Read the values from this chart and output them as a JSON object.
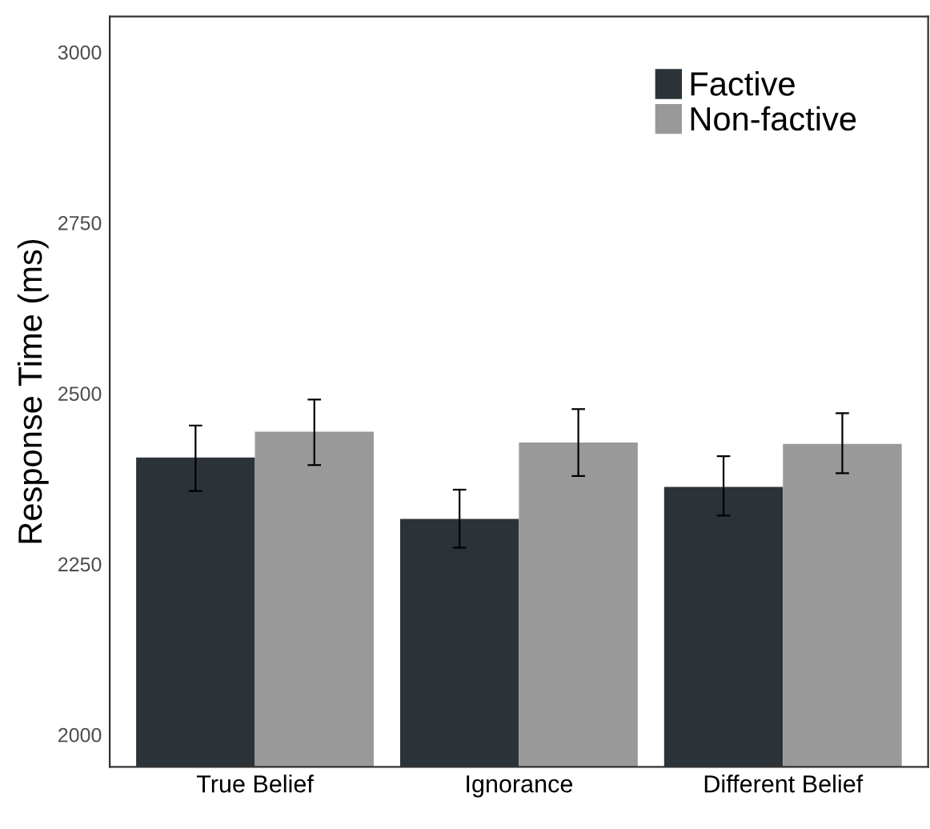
{
  "chart_data": {
    "type": "bar",
    "ylabel": "Response Time (ms)",
    "categories": [
      "True Belief",
      "Ignorance",
      "Different Belief"
    ],
    "series": [
      {
        "name": "Factive",
        "color": "#2c3338",
        "values": [
          2406,
          2316,
          2363
        ],
        "errors": [
          [
            2357,
            2453
          ],
          [
            2274,
            2359
          ],
          [
            2321,
            2408
          ]
        ]
      },
      {
        "name": "Non-factive",
        "color": "#999999",
        "values": [
          2444,
          2428,
          2426
        ],
        "errors": [
          [
            2395,
            2491
          ],
          [
            2379,
            2477
          ],
          [
            2383,
            2471
          ]
        ]
      }
    ],
    "ylim": [
      1953,
      3052
    ],
    "yticks": [
      2000,
      2250,
      2500,
      2750,
      3000
    ],
    "grid": false,
    "legend": "top right"
  }
}
